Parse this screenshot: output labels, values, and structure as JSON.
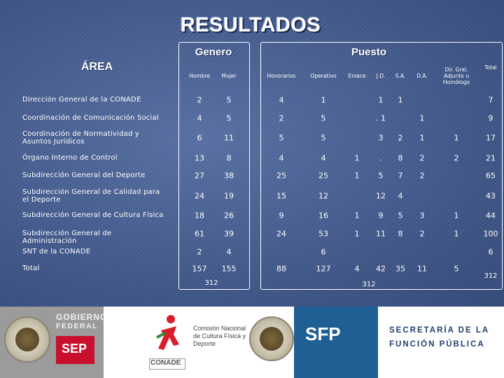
{
  "title": "RESULTADOS",
  "area_label": "ÁREA",
  "groups": {
    "genero": "Genero",
    "puesto": "Puesto"
  },
  "columns": [
    "Hombre",
    "Mujer",
    "Honorarios",
    "Operativo",
    "Enlace",
    "J.D.",
    "S.A.",
    "D.A.",
    "Dir. Gral. Adjunto u Homólogo",
    "Total"
  ],
  "rows": [
    {
      "area": "Dirección General de la CONADE",
      "values": [
        "2",
        "5",
        "4",
        "1",
        "",
        "1",
        "1",
        "",
        "",
        "7"
      ]
    },
    {
      "area": "Coordinación de Comunicación Social",
      "values": [
        "4",
        "5",
        "2",
        "5",
        "",
        ". 1",
        "",
        "1",
        "",
        "9"
      ]
    },
    {
      "area": "Coordinación de Normatividad y Asuntos Jurídicos",
      "values": [
        "6",
        "11",
        "5",
        "5",
        "",
        "3",
        "2",
        "1",
        "1",
        "17"
      ]
    },
    {
      "area": "Órgano Interno de Control",
      "values": [
        "13",
        "8",
        "4",
        "4",
        "1",
        ".",
        "8",
        "2",
        "2",
        "21"
      ]
    },
    {
      "area": "Subdirección General del Deporte",
      "values": [
        "27",
        "38",
        "25",
        "25",
        "1",
        "5",
        "7",
        "2",
        "",
        "65"
      ]
    },
    {
      "area": "Subdirección General de Calidad para el Deporte",
      "values": [
        "24",
        "19",
        "15",
        "12",
        "",
        "12",
        "4",
        "",
        "",
        "43"
      ]
    },
    {
      "area": "Subdirección General de Cultura Física",
      "values": [
        "18",
        "26",
        "9",
        "16",
        "1",
        "9",
        "5",
        "3",
        "1",
        "44"
      ]
    },
    {
      "area": "Subdirección General de Administración",
      "values": [
        "61",
        "39",
        "24",
        "53",
        "1",
        "11",
        "8",
        "2",
        "1",
        "100"
      ]
    },
    {
      "area": "SNT de la CONADE",
      "values": [
        "2",
        "4",
        "",
        "6",
        "",
        "",
        "",
        "",
        "",
        "6"
      ]
    },
    {
      "area": "Total",
      "values": [
        "157",
        "155",
        "88",
        "127",
        "4",
        "42",
        "35",
        "11",
        "5",
        ""
      ]
    }
  ],
  "grand_totals": {
    "genero": "312",
    "puesto": "312",
    "total": "312"
  },
  "footer": {
    "gobierno_line1": "GOBIERNO",
    "gobierno_line2": "FEDERAL",
    "sep": "SEP",
    "conade_logo": "CONADE",
    "conade_name": "Comisión Nacional de Cultura Física y Deporte",
    "sfp": "SFP",
    "sfp_line1": "SECRETARÍA DE LA",
    "sfp_line2": "FUNCIÓN PÚBLICA",
    "colors": {
      "sep_red": "#c8102e",
      "gray_band": "#9b9b9b",
      "sfp_blue": "#1f5f94"
    }
  }
}
